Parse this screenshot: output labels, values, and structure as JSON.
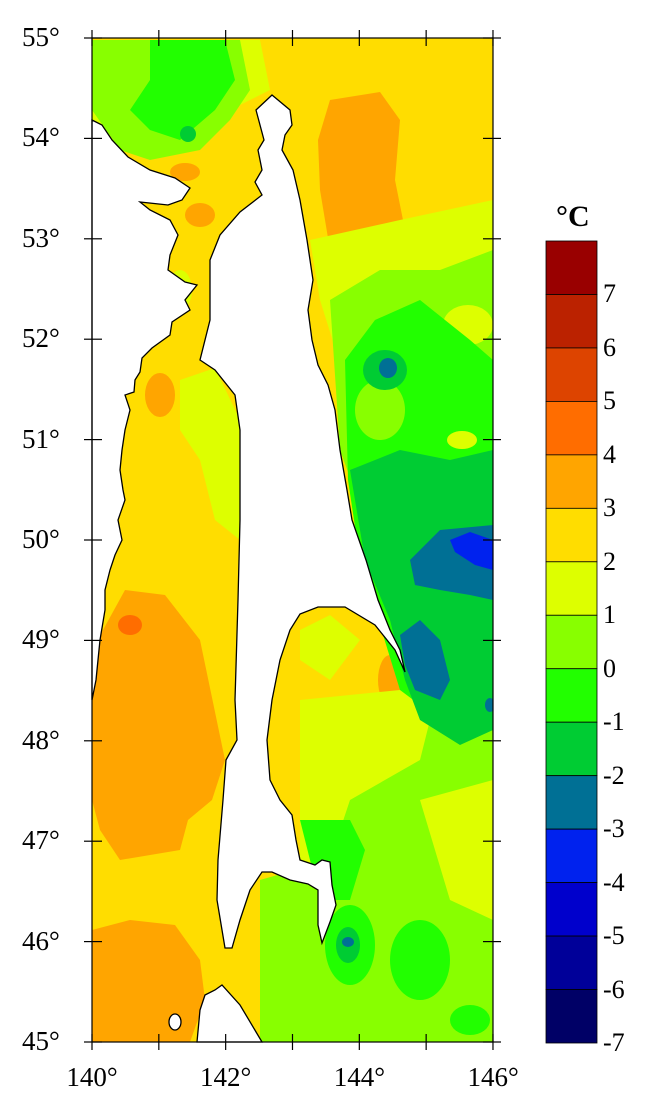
{
  "map": {
    "lat_labels": [
      "55°",
      "54°",
      "53°",
      "52°",
      "51°",
      "50°",
      "49°",
      "48°",
      "47°",
      "46°",
      "45°"
    ],
    "lon_labels": [
      "140°",
      "142°",
      "144°",
      "146°"
    ],
    "lat_range": [
      45,
      55
    ],
    "lon_range": [
      140,
      146
    ],
    "land_color": "#ffffff",
    "coastline_color": "#000000"
  },
  "legend": {
    "unit": "°C",
    "labels": [
      "7",
      "6",
      "5",
      "4",
      "3",
      "2",
      "1",
      "0",
      "-1",
      "-2",
      "-3",
      "-4",
      "-5",
      "-6",
      "-7"
    ],
    "colors": [
      "#990000",
      "#bb2200",
      "#dd4400",
      "#ff6d00",
      "#ffa500",
      "#ffdd00",
      "#ddff00",
      "#88ff00",
      "#22ff00",
      "#00cc33",
      "#007095",
      "#0022ee",
      "#0000cc",
      "#000099",
      "#000066"
    ]
  }
}
